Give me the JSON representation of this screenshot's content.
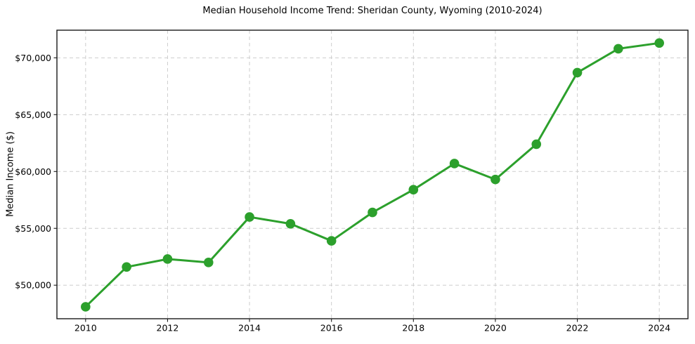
{
  "chart_data": {
    "type": "line",
    "title": "Median Household Income Trend: Sheridan County, Wyoming (2010-2024)",
    "xlabel": "",
    "ylabel": "Median Income ($)",
    "series": [
      {
        "name": "Median Household Income",
        "x": [
          2010,
          2011,
          2012,
          2013,
          2014,
          2015,
          2016,
          2017,
          2018,
          2019,
          2020,
          2021,
          2022,
          2023,
          2024
        ],
        "values": [
          48100,
          51600,
          52300,
          52000,
          56000,
          55400,
          53900,
          56400,
          58400,
          60700,
          59300,
          62400,
          68700,
          70800,
          71300
        ]
      }
    ],
    "line_color": "#2ca02c",
    "marker": "circle",
    "marker_color": "#2ca02c",
    "xlim": [
      2009.3,
      2024.7
    ],
    "ylim": [
      47050,
      72430
    ],
    "x_ticks": [
      {
        "value": 2010,
        "label": "2010"
      },
      {
        "value": 2012,
        "label": "2012"
      },
      {
        "value": 2014,
        "label": "2014"
      },
      {
        "value": 2016,
        "label": "2016"
      },
      {
        "value": 2018,
        "label": "2018"
      },
      {
        "value": 2020,
        "label": "2020"
      },
      {
        "value": 2022,
        "label": "2022"
      },
      {
        "value": 2024,
        "label": "2024"
      }
    ],
    "y_ticks": [
      {
        "value": 50000,
        "label": "$50,000"
      },
      {
        "value": 55000,
        "label": "$55,000"
      },
      {
        "value": 60000,
        "label": "$60,000"
      },
      {
        "value": 65000,
        "label": "$65,000"
      },
      {
        "value": 70000,
        "label": "$70,000"
      }
    ],
    "grid": "dashed, both axes",
    "legend": "none"
  }
}
